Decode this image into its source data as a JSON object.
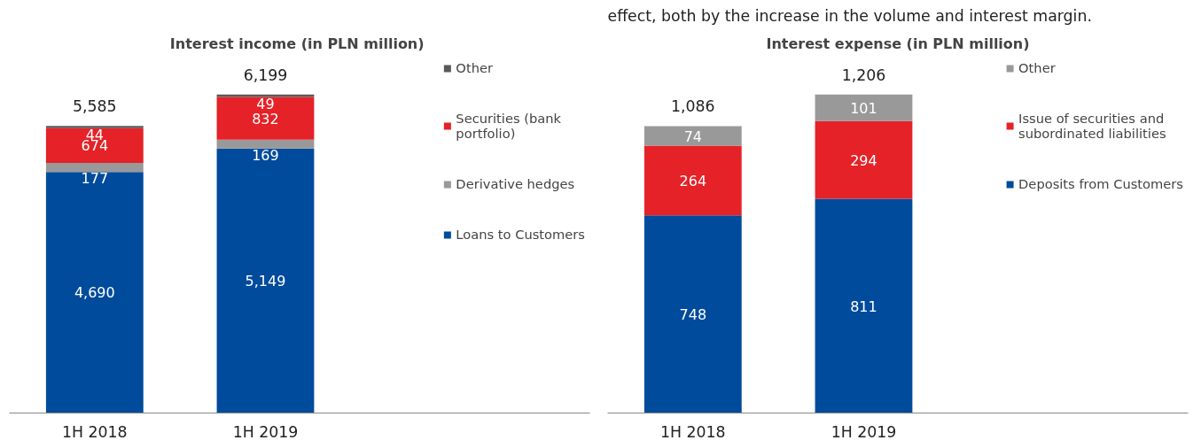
{
  "chart_data": [
    {
      "type": "bar",
      "stacked": true,
      "title": "Interest income  (in PLN million)",
      "categories": [
        "1H 2018",
        "1H 2019"
      ],
      "legend": "right",
      "series": [
        {
          "name": "Loans to Customers",
          "color": "#004b9b",
          "values": [
            4690,
            5149
          ],
          "value_labels": [
            "4,690",
            "5,149"
          ]
        },
        {
          "name": "Derivative hedges",
          "color": "#999999",
          "values": [
            177,
            169
          ],
          "value_labels": [
            "177",
            "169"
          ]
        },
        {
          "name": "Securities (bank portfolio)",
          "color": "#e42228",
          "values": [
            674,
            832
          ],
          "value_labels": [
            "674",
            "832"
          ]
        },
        {
          "name": "Other",
          "color": "#595959",
          "values": [
            44,
            49
          ],
          "value_labels": [
            "44",
            "49"
          ]
        }
      ],
      "totals": [
        "5,585",
        "6,199"
      ]
    },
    {
      "type": "bar",
      "stacked": true,
      "title": "Interest expense (in PLN million)",
      "categories": [
        "1H 2018",
        "1H 2019"
      ],
      "legend": "right",
      "annotations": [
        "effect, both by the increase in the volume and interest margin."
      ],
      "series": [
        {
          "name": "Deposits from Customers",
          "color": "#004b9b",
          "values": [
            748,
            811
          ],
          "value_labels": [
            "748",
            "811"
          ]
        },
        {
          "name": "Issue of securities and subordinated liabilities",
          "color": "#e42228",
          "values": [
            264,
            294
          ],
          "value_labels": [
            "264",
            "294"
          ]
        },
        {
          "name": "Other",
          "color": "#999999",
          "values": [
            74,
            101
          ],
          "value_labels": [
            "74",
            "101"
          ]
        }
      ],
      "totals": [
        "1,086",
        "1,206"
      ]
    }
  ]
}
